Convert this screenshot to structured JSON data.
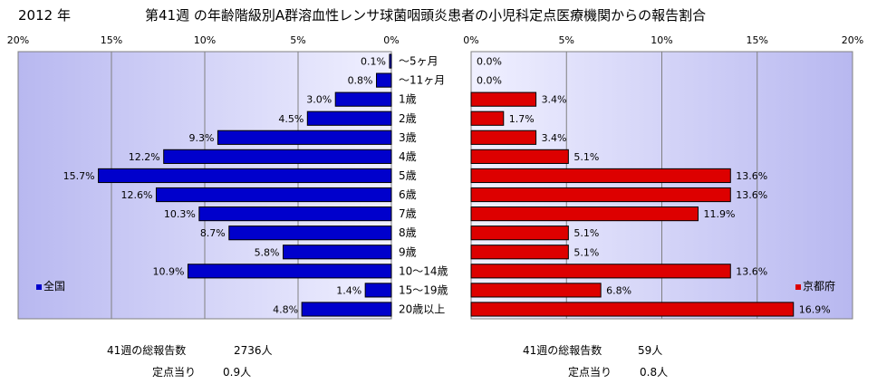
{
  "year_label": "2012 年",
  "title": "第41週 の年齢階級別A群溶血性レンサ球菌咽頭炎患者の小児科定点医療機関からの報告割合",
  "chart_data": [
    {
      "type": "bar",
      "orientation": "horizontal",
      "direction": "right-to-left",
      "legend": "全国",
      "legend_position": "left",
      "color": "#0000cc",
      "xlim": [
        0,
        20
      ],
      "ticks": [
        "20%",
        "15%",
        "10%",
        "5%",
        "0%"
      ],
      "categories": [
        "～5ヶ月",
        "～11ヶ月",
        "1歳",
        "2歳",
        "3歳",
        "4歳",
        "5歳",
        "6歳",
        "7歳",
        "8歳",
        "9歳",
        "10～14歳",
        "15～19歳",
        "20歳以上"
      ],
      "values": [
        0.1,
        0.8,
        3.0,
        4.5,
        9.3,
        12.2,
        15.7,
        12.6,
        10.3,
        8.7,
        5.8,
        10.9,
        1.4,
        4.8
      ],
      "value_labels": [
        "0.1%",
        "0.8%",
        "3.0%",
        "4.5%",
        "9.3%",
        "12.2%",
        "15.7%",
        "12.6%",
        "10.3%",
        "8.7%",
        "5.8%",
        "10.9%",
        "1.4%",
        "4.8%"
      ]
    },
    {
      "type": "bar",
      "orientation": "horizontal",
      "direction": "left-to-right",
      "legend": "京都府",
      "legend_position": "right",
      "color": "#dd0000",
      "xlim": [
        0,
        20
      ],
      "ticks": [
        "0%",
        "5%",
        "10%",
        "15%",
        "20%"
      ],
      "categories": [
        "～5ヶ月",
        "～11ヶ月",
        "1歳",
        "2歳",
        "3歳",
        "4歳",
        "5歳",
        "6歳",
        "7歳",
        "8歳",
        "9歳",
        "10～14歳",
        "15～19歳",
        "20歳以上"
      ],
      "values": [
        0.0,
        0.0,
        3.4,
        1.7,
        3.4,
        5.1,
        13.6,
        13.6,
        11.9,
        5.1,
        5.1,
        13.6,
        6.8,
        16.9
      ],
      "value_labels": [
        "0.0%",
        "0.0%",
        "3.4%",
        "1.7%",
        "3.4%",
        "5.1%",
        "13.6%",
        "13.6%",
        "11.9%",
        "5.1%",
        "5.1%",
        "13.6%",
        "6.8%",
        "16.9%"
      ]
    }
  ],
  "footer": {
    "left": {
      "total_label": "41週の総報告数",
      "total_value": "2736人",
      "per_label": "定点当り",
      "per_value": "0.9人"
    },
    "right": {
      "total_label": "41週の総報告数",
      "total_value": "59人",
      "per_label": "定点当り",
      "per_value": "0.8人"
    }
  }
}
